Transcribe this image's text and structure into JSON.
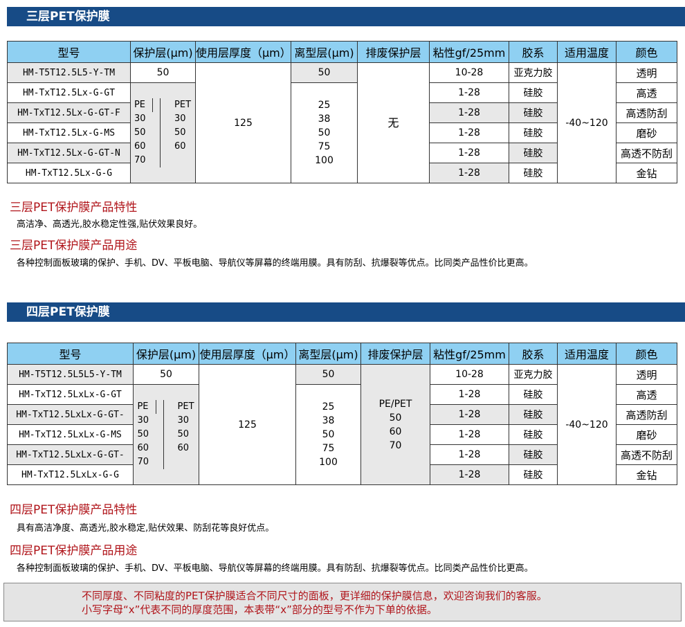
{
  "colors": {
    "header_bar": "#174b86",
    "table_header": "#8fd0f2",
    "section_title": "#b0141a"
  },
  "headers": [
    "型号",
    "保护层(μm)",
    "使用层厚度（μm）",
    "离型层(μm)",
    "排废保护层",
    "粘性gf/25mm",
    "胶系",
    "适用温度",
    "颜色"
  ],
  "three": {
    "title": "三层PET保护膜",
    "models": [
      "HM-T5T12.5L5-Y-TM",
      "HM-TxT12.5Lx-G-GT",
      "HM-TxT12.5Lx-G-GT-F",
      "HM-TxT12.5Lx-G-MS",
      "HM-TxT12.5Lx-G-GT-N",
      "HM-TxT12.5Lx-G-G"
    ],
    "protect_first": "50",
    "protect_pe": [
      "PE",
      "30",
      "50",
      "60",
      "70"
    ],
    "protect_pet": [
      "PET",
      "30",
      "50",
      "60"
    ],
    "usage": "125",
    "release_first": "50",
    "release_multi": [
      "25",
      "38",
      "50",
      "75",
      "100"
    ],
    "waste": [
      "无"
    ],
    "adhesion": [
      "10-28",
      "1-28",
      "1-28",
      "1-28",
      "1-28",
      "1-28"
    ],
    "glue": [
      "亚克力胶",
      "硅胶",
      "硅胶",
      "硅胶",
      "硅胶",
      "硅胶"
    ],
    "temp": "-40~120",
    "colors": [
      "透明",
      "高透",
      "高透防刮",
      "磨砂",
      "高透不防刮",
      "金钻"
    ],
    "feature_title": "三层PET保护膜产品特性",
    "feature_text": "高洁净、高透光,胶水稳定性强,贴伏效果良好。",
    "use_title": "三层PET保护膜产品用途",
    "use_text": "各种控制面板玻璃的保护、手机、DV、平板电脑、导航仪等屏幕的终端用膜。具有防刮、抗爆裂等优点。比同类产品性价比更高。"
  },
  "four": {
    "title": "四层PET保护膜",
    "models": [
      "HM-T5T12.5L5L5-Y-TM",
      "HM-TxT12.5LxLx-G-GT",
      "HM-TxT12.5LxLx-G-GT-",
      "HM-TxT12.5LxLx-G-MS",
      "HM-TxT12.5LxLx-G-GT-",
      "HM-TxT12.5LxLx-G-G"
    ],
    "protect_first": "50",
    "protect_pe": [
      "PE",
      "30",
      "50",
      "60",
      "70"
    ],
    "protect_pet": [
      "PET",
      "30",
      "50",
      "60"
    ],
    "usage": "125",
    "release_first": "50",
    "release_multi": [
      "25",
      "38",
      "50",
      "75",
      "100"
    ],
    "waste": [
      "PE/PET",
      "50",
      "60",
      "70"
    ],
    "adhesion": [
      "10-28",
      "1-28",
      "1-28",
      "1-28",
      "1-28",
      "1-28"
    ],
    "glue": [
      "亚克力胶",
      "硅胶",
      "硅胶",
      "硅胶",
      "硅胶",
      "硅胶"
    ],
    "temp": "-40~120",
    "colors": [
      "透明",
      "高透",
      "高透防刮",
      "磨砂",
      "高透不防刮",
      "金钻"
    ],
    "feature_title": "四层PET保护膜产品特性",
    "feature_text": "具有高洁净度、高透光,胶水稳定,贴伏效果、防刮花等良好优点。",
    "use_title": "四层PET保护膜产品用途",
    "use_text": "各种控制面板玻璃的保护、手机、DV、平板电脑、导航仪等屏幕的终端用膜。具有防刮、抗爆裂等优点。比同类产品性价比更高。"
  },
  "footer": [
    "不同厚度、不同粘度的PET保护膜适合不同尺寸的面板，更详细的保护膜信息，欢迎咨询我们的客服。",
    "小写字母“x”代表不同的厚度范围，本表带“x”部分的型号不作为下单的依据。"
  ]
}
